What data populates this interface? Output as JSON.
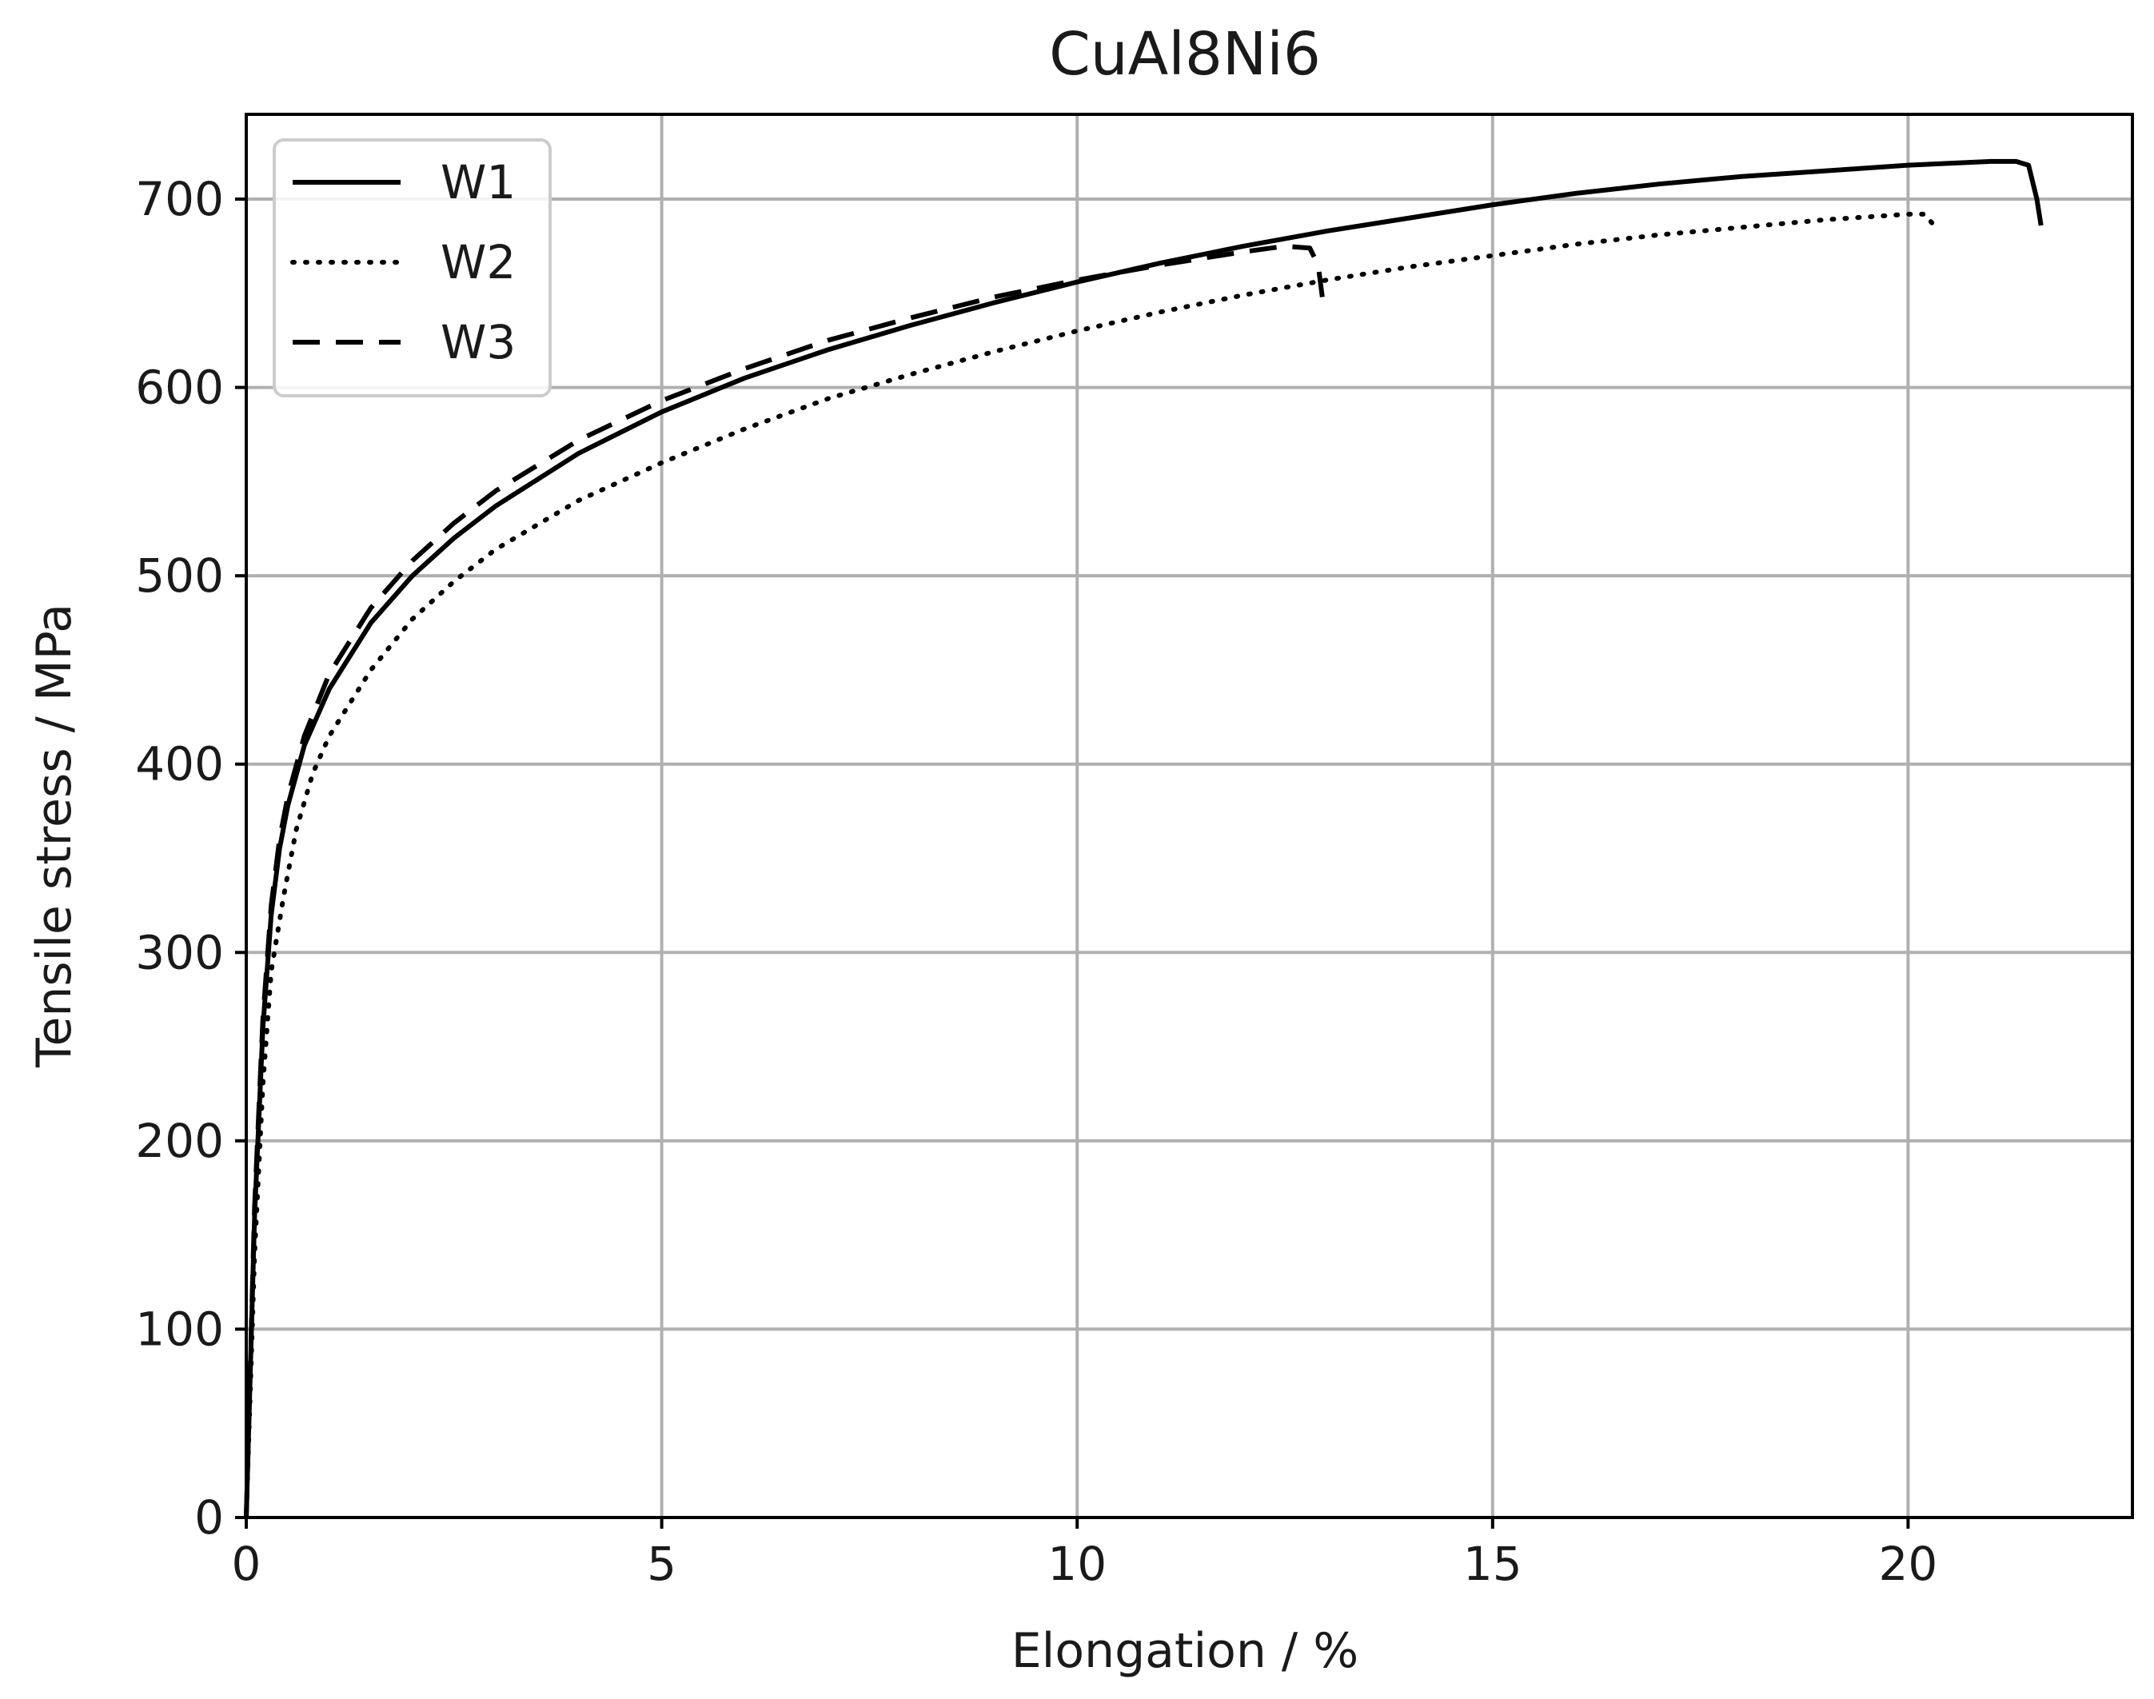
{
  "chart_data": {
    "type": "line",
    "title": "CuAl8Ni6",
    "xlabel": "Elongation / %",
    "ylabel": "Tensile stress / MPa",
    "xlim": [
      0,
      22.7
    ],
    "ylim": [
      0,
      745
    ],
    "xticks": [
      0,
      5,
      10,
      15,
      20
    ],
    "yticks": [
      0,
      100,
      200,
      300,
      400,
      500,
      600,
      700
    ],
    "grid": true,
    "legend_position": "top-left",
    "series": [
      {
        "name": "W1",
        "style": "solid",
        "x": [
          0,
          0.1,
          0.2,
          0.3,
          0.4,
          0.5,
          0.7,
          1.0,
          1.5,
          2.0,
          2.5,
          3,
          4,
          5,
          6,
          7,
          8,
          9,
          10,
          11,
          12,
          13,
          14,
          15,
          16,
          17,
          18,
          19,
          20,
          21,
          21.3,
          21.45,
          21.55,
          21.6
        ],
        "y": [
          0,
          160,
          260,
          320,
          355,
          378,
          410,
          440,
          475,
          500,
          520,
          537,
          565,
          587,
          605,
          620,
          633,
          645,
          656,
          666,
          675,
          683,
          690,
          697,
          703,
          708,
          712,
          715,
          718,
          720,
          720,
          718,
          700,
          686
        ]
      },
      {
        "name": "W2",
        "style": "dotted",
        "x": [
          0,
          0.1,
          0.2,
          0.3,
          0.45,
          0.6,
          0.8,
          1.0,
          1.5,
          2.0,
          2.5,
          3,
          4,
          5,
          6,
          7,
          8,
          9,
          10,
          11,
          12,
          13,
          14,
          15,
          16,
          17,
          18,
          19,
          20,
          20.2,
          20.35
        ],
        "y": [
          0,
          140,
          230,
          290,
          330,
          365,
          395,
          415,
          450,
          477,
          497,
          514,
          540,
          560,
          578,
          594,
          607,
          619,
          630,
          640,
          649,
          657,
          664,
          670,
          676,
          681,
          685,
          689,
          692,
          692,
          684
        ]
      },
      {
        "name": "W3",
        "style": "dashed",
        "x": [
          0,
          0.1,
          0.2,
          0.3,
          0.4,
          0.5,
          0.7,
          1.0,
          1.5,
          2.0,
          2.5,
          3,
          4,
          5,
          6,
          7,
          8,
          9,
          10,
          11,
          12,
          12.5,
          12.8,
          12.9,
          12.95
        ],
        "y": [
          0,
          165,
          265,
          325,
          360,
          383,
          415,
          448,
          483,
          508,
          528,
          545,
          572,
          593,
          610,
          625,
          637,
          648,
          657,
          665,
          672,
          675,
          674,
          665,
          648
        ]
      }
    ]
  }
}
